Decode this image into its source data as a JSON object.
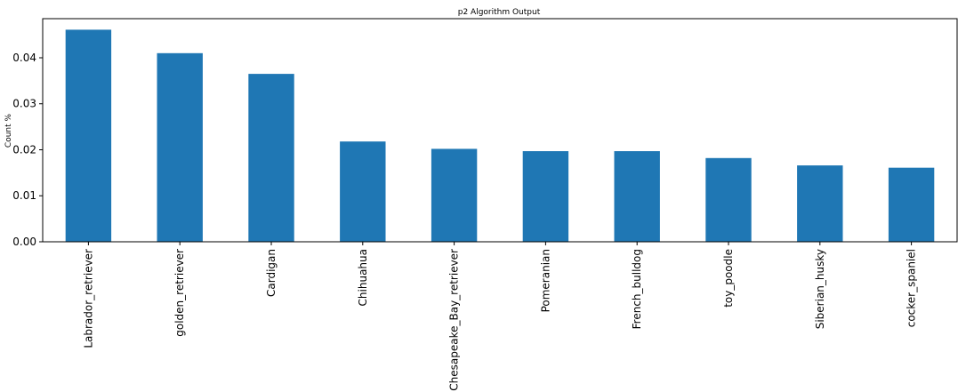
{
  "chart_data": {
    "type": "bar",
    "title": "p2 Algorithm Output",
    "xlabel": "",
    "ylabel": "Count %",
    "categories": [
      "Labrador_retriever",
      "golden_retriever",
      "Cardigan",
      "Chihuahua",
      "Chesapeake_Bay_retriever",
      "Pomeranian",
      "French_bulldog",
      "toy_poodle",
      "Siberian_husky",
      "cocker_spaniel"
    ],
    "values": [
      0.0461,
      0.041,
      0.0365,
      0.0218,
      0.0202,
      0.0197,
      0.0197,
      0.0182,
      0.0166,
      0.0161
    ],
    "yticks": [
      "0.00",
      "0.01",
      "0.02",
      "0.03",
      "0.04"
    ],
    "ylim": [
      0,
      0.0485
    ],
    "grid": false,
    "legend": "none",
    "bar_color": "#1f77b4"
  }
}
